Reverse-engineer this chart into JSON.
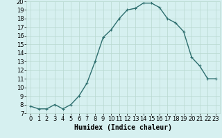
{
  "xlabel": "Humidex (Indice chaleur)",
  "x": [
    0,
    1,
    2,
    3,
    4,
    5,
    6,
    7,
    8,
    9,
    10,
    11,
    12,
    13,
    14,
    15,
    16,
    17,
    18,
    19,
    20,
    21,
    22,
    23
  ],
  "y": [
    7.8,
    7.5,
    7.5,
    8.0,
    7.5,
    8.0,
    9.0,
    10.5,
    13.0,
    15.8,
    16.7,
    18.0,
    19.0,
    19.2,
    19.8,
    19.8,
    19.3,
    18.0,
    17.5,
    16.5,
    13.5,
    12.5,
    11.0,
    11.0
  ],
  "line_color": "#2d6e6e",
  "marker": "+",
  "bg_color": "#d6f0f0",
  "grid_color": "#b8d8d0",
  "ylim": [
    7,
    20
  ],
  "yticks": [
    7,
    8,
    9,
    10,
    11,
    12,
    13,
    14,
    15,
    16,
    17,
    18,
    19,
    20
  ],
  "xlim_min": -0.5,
  "xlim_max": 23.5,
  "xticks": [
    0,
    1,
    2,
    3,
    4,
    5,
    6,
    7,
    8,
    9,
    10,
    11,
    12,
    13,
    14,
    15,
    16,
    17,
    18,
    19,
    20,
    21,
    22,
    23
  ],
  "xlabel_fontsize": 7,
  "tick_fontsize": 6,
  "linewidth": 1.0,
  "markersize": 3,
  "markeredgewidth": 0.8
}
